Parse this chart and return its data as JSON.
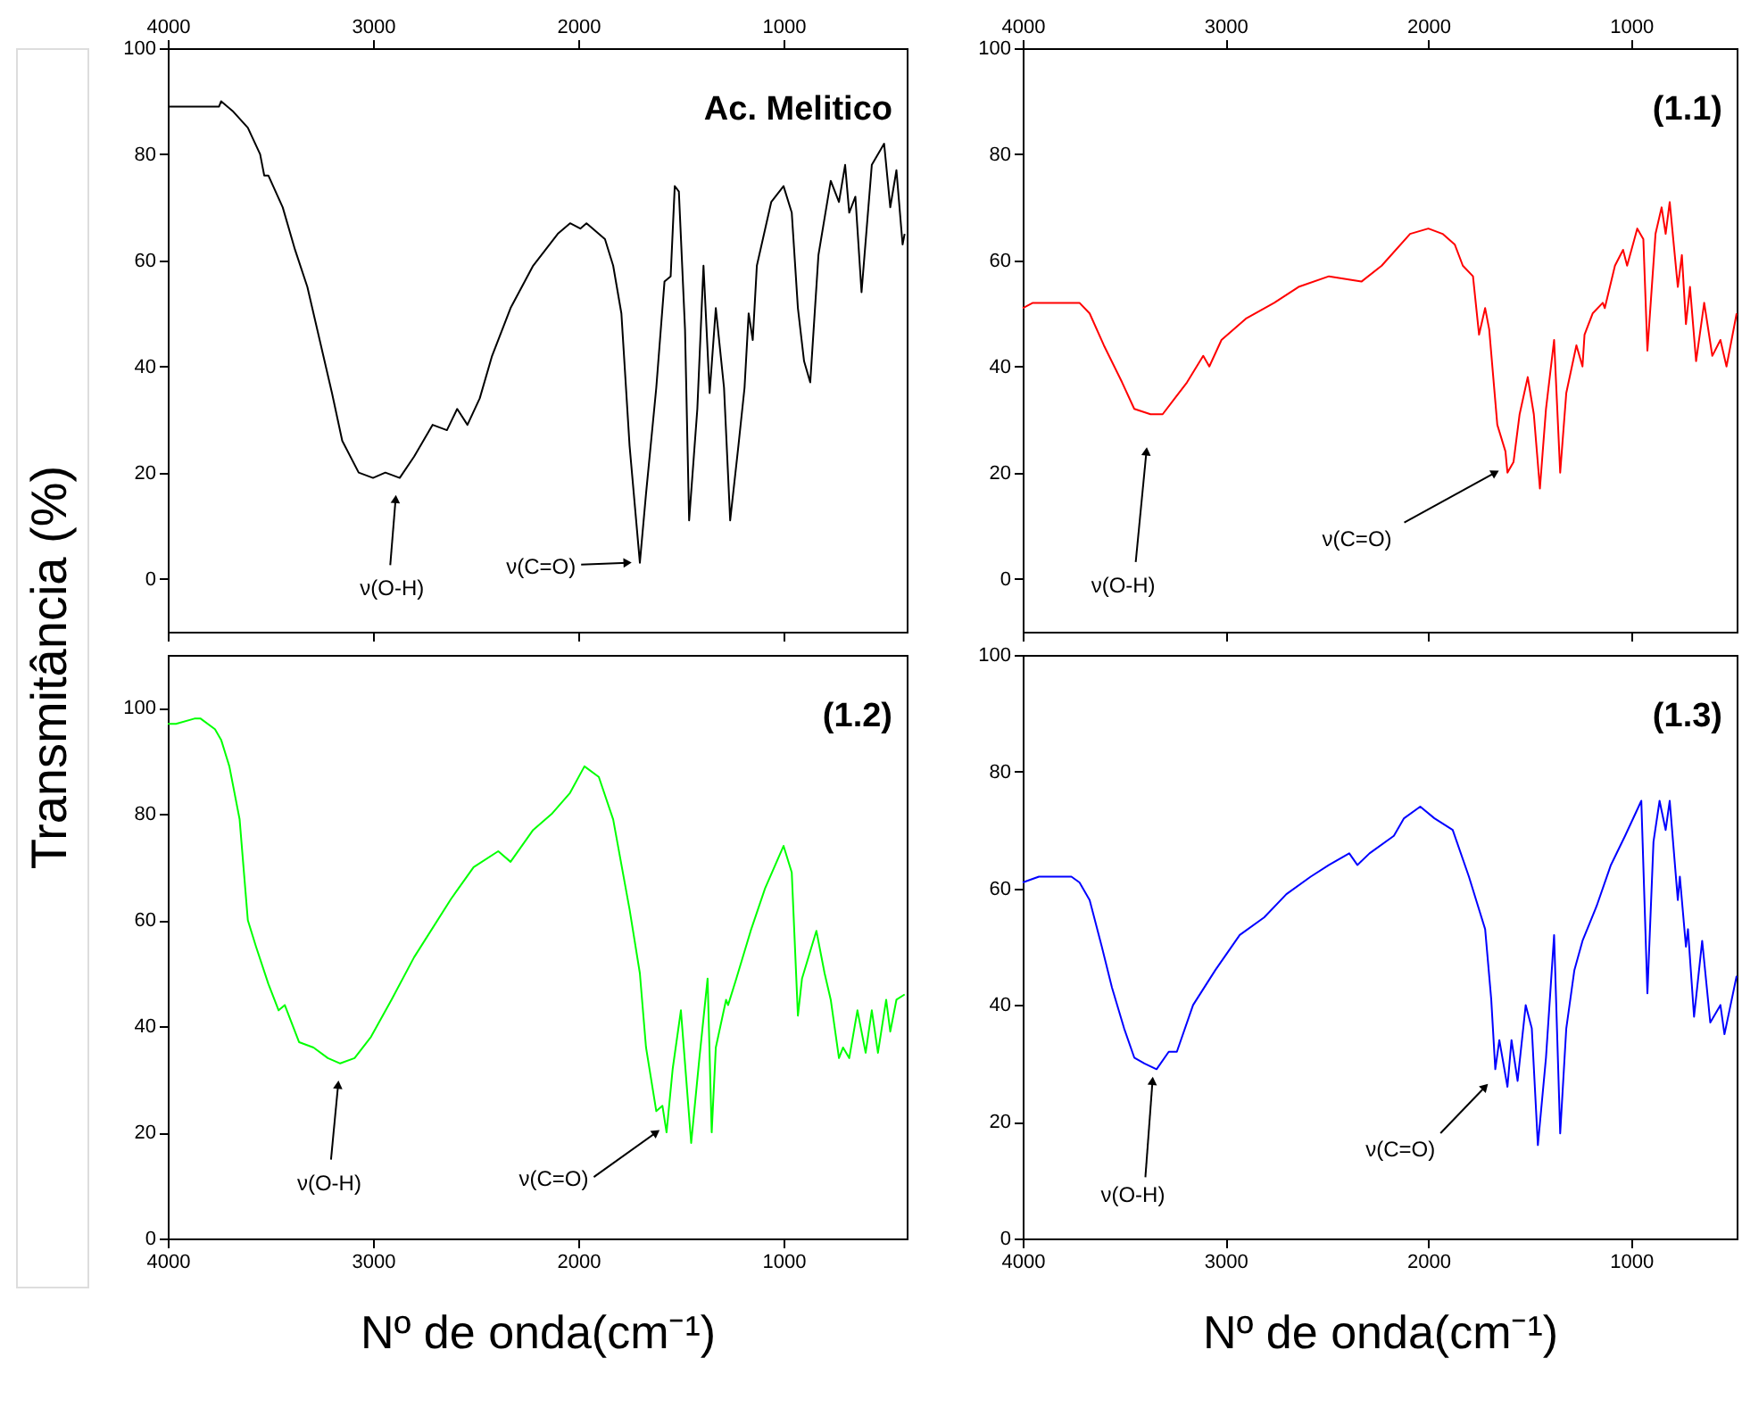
{
  "chart_data": [
    {
      "type": "line",
      "ylabel": "Transmitância (%)",
      "xlim": [
        4000,
        400
      ],
      "ylim": [
        -10,
        100
      ],
      "yticks": [
        0,
        20,
        40,
        60,
        80,
        100
      ],
      "xticks": [
        4000,
        3000,
        2000,
        1000
      ],
      "annotations": [
        "Ac. Melitico",
        {
          "text": "ν(O-H)",
          "x": 2890,
          "y": 15
        },
        {
          "text": "ν(C=O)",
          "x": 1760,
          "y": 3
        }
      ],
      "x": [
        4000,
        3900,
        3840,
        3750,
        3740,
        3680,
        3610,
        3550,
        3530,
        3510,
        3440,
        3380,
        3320,
        3260,
        3200,
        3150,
        3070,
        3000,
        2940,
        2870,
        2800,
        2710,
        2640,
        2590,
        2540,
        2480,
        2420,
        2330,
        2220,
        2100,
        2040,
        1990,
        1960,
        1870,
        1830,
        1790,
        1750,
        1700,
        1670,
        1620,
        1580,
        1550,
        1530,
        1510,
        1480,
        1460,
        1420,
        1390,
        1360,
        1330,
        1290,
        1260,
        1220,
        1190,
        1170,
        1150,
        1130,
        1060,
        1000,
        960,
        930,
        900,
        870,
        830,
        770,
        730,
        700,
        680,
        650,
        620,
        570,
        510,
        480,
        450,
        420,
        410
      ],
      "series": [
        {
          "color": "#000000",
          "values": [
            89,
            89,
            89,
            89,
            90,
            88,
            85,
            80,
            76,
            76,
            70,
            62,
            55,
            45,
            35,
            26,
            20,
            19,
            20,
            19,
            23,
            29,
            28,
            32,
            29,
            34,
            42,
            51,
            59,
            65,
            67,
            66,
            67,
            64,
            59,
            50,
            25,
            3,
            16,
            36,
            56,
            57,
            74,
            73,
            47,
            11,
            32,
            59,
            35,
            51,
            36,
            11,
            25,
            36,
            50,
            45,
            59,
            71,
            74,
            69,
            51,
            41,
            37,
            61,
            75,
            71,
            78,
            69,
            72,
            54,
            78,
            82,
            70,
            77,
            63,
            65
          ]
        }
      ]
    },
    {
      "type": "line",
      "xlim": [
        4000,
        480
      ],
      "ylim": [
        -10,
        100
      ],
      "yticks": [
        0,
        20,
        40,
        60,
        80,
        100
      ],
      "xticks": [
        4000,
        3000,
        2000,
        1000
      ],
      "annotations": [
        "(1.1)",
        {
          "text": "ν(O-H)",
          "x": 3390,
          "y": 24
        },
        {
          "text": "ν(C=O)",
          "x": 1670,
          "y": 20
        }
      ],
      "x": [
        4000,
        3950,
        3830,
        3720,
        3670,
        3600,
        3510,
        3450,
        3370,
        3310,
        3250,
        3190,
        3110,
        3080,
        3020,
        2900,
        2760,
        2640,
        2490,
        2330,
        2230,
        2090,
        2000,
        1930,
        1870,
        1830,
        1780,
        1750,
        1720,
        1700,
        1660,
        1620,
        1610,
        1580,
        1550,
        1510,
        1480,
        1450,
        1420,
        1380,
        1350,
        1320,
        1270,
        1240,
        1230,
        1190,
        1140,
        1130,
        1080,
        1040,
        1020,
        970,
        940,
        920,
        880,
        850,
        830,
        810,
        770,
        750,
        730,
        710,
        680,
        640,
        600,
        560,
        530,
        480
      ],
      "series": [
        {
          "color": "#ff0000",
          "values": [
            51,
            52,
            52,
            52,
            50,
            44,
            37,
            32,
            31,
            31,
            34,
            37,
            42,
            40,
            45,
            49,
            52,
            55,
            57,
            56,
            59,
            65,
            66,
            65,
            63,
            59,
            57,
            46,
            51,
            47,
            29,
            24,
            20,
            22,
            31,
            38,
            31,
            17,
            32,
            45,
            20,
            35,
            44,
            40,
            46,
            50,
            52,
            51,
            59,
            62,
            59,
            66,
            64,
            43,
            65,
            70,
            65,
            71,
            55,
            61,
            48,
            55,
            41,
            52,
            42,
            45,
            40,
            50
          ]
        }
      ]
    },
    {
      "type": "line",
      "xlabel": "Nº de onda(cm⁻¹)",
      "xlim": [
        4000,
        400
      ],
      "ylim": [
        0,
        110
      ],
      "yticks": [
        0,
        20,
        40,
        60,
        80,
        100
      ],
      "xticks": [
        4000,
        3000,
        2000,
        1000
      ],
      "annotations": [
        "(1.2)",
        {
          "text": "ν(O-H)",
          "x": 3170,
          "y": 29
        },
        {
          "text": "ν(C=O)",
          "x": 1620,
          "y": 20
        }
      ],
      "x": [
        4000,
        3960,
        3870,
        3840,
        3770,
        3740,
        3700,
        3650,
        3610,
        3570,
        3510,
        3460,
        3430,
        3360,
        3290,
        3220,
        3160,
        3090,
        3010,
        2910,
        2800,
        2620,
        2510,
        2390,
        2330,
        2220,
        2130,
        2040,
        1970,
        1900,
        1830,
        1750,
        1700,
        1670,
        1620,
        1590,
        1570,
        1540,
        1500,
        1450,
        1410,
        1370,
        1350,
        1330,
        1280,
        1270,
        1230,
        1160,
        1090,
        1000,
        960,
        930,
        910,
        840,
        800,
        770,
        730,
        710,
        680,
        640,
        600,
        570,
        540,
        500,
        480,
        450,
        410
      ],
      "series": [
        {
          "color": "#00ff00",
          "values": [
            97,
            97,
            98,
            98,
            96,
            94,
            89,
            79,
            60,
            55,
            48,
            43,
            44,
            37,
            36,
            34,
            33,
            34,
            38,
            45,
            53,
            64,
            70,
            73,
            71,
            77,
            80,
            84,
            89,
            87,
            79,
            62,
            50,
            36,
            24,
            25,
            20,
            32,
            43,
            18,
            34,
            49,
            20,
            36,
            45,
            44,
            49,
            58,
            66,
            74,
            69,
            42,
            49,
            58,
            50,
            45,
            34,
            36,
            34,
            43,
            35,
            43,
            35,
            45,
            39,
            45,
            46
          ]
        }
      ]
    },
    {
      "type": "line",
      "xlabel": "Nº de onda(cm⁻¹)",
      "xlim": [
        4000,
        480
      ],
      "ylim": [
        0,
        100
      ],
      "yticks": [
        0,
        20,
        40,
        60,
        80,
        100
      ],
      "xticks": [
        4000,
        3000,
        2000,
        1000
      ],
      "annotations": [
        "(1.3)",
        {
          "text": "ν(O-H)",
          "x": 3360,
          "y": 27
        },
        {
          "text": "ν(C=O)",
          "x": 1720,
          "y": 26
        }
      ],
      "x": [
        4000,
        3920,
        3830,
        3760,
        3720,
        3670,
        3610,
        3560,
        3500,
        3450,
        3400,
        3340,
        3280,
        3240,
        3160,
        3050,
        2930,
        2810,
        2700,
        2580,
        2490,
        2390,
        2350,
        2290,
        2170,
        2120,
        2040,
        1970,
        1880,
        1800,
        1720,
        1690,
        1670,
        1650,
        1610,
        1590,
        1560,
        1520,
        1490,
        1460,
        1420,
        1380,
        1350,
        1320,
        1280,
        1240,
        1170,
        1100,
        1030,
        950,
        920,
        890,
        860,
        830,
        810,
        770,
        760,
        730,
        720,
        690,
        650,
        610,
        560,
        540,
        480
      ],
      "series": [
        {
          "color": "#0000ff",
          "values": [
            61,
            62,
            62,
            62,
            61,
            58,
            50,
            43,
            36,
            31,
            30,
            29,
            32,
            32,
            40,
            46,
            52,
            55,
            59,
            62,
            64,
            66,
            64,
            66,
            69,
            72,
            74,
            72,
            70,
            62,
            53,
            41,
            29,
            34,
            26,
            34,
            27,
            40,
            36,
            16,
            31,
            52,
            18,
            36,
            46,
            51,
            57,
            64,
            69,
            75,
            42,
            68,
            75,
            70,
            75,
            58,
            62,
            50,
            53,
            38,
            51,
            37,
            40,
            35,
            45
          ]
        }
      ]
    }
  ]
}
